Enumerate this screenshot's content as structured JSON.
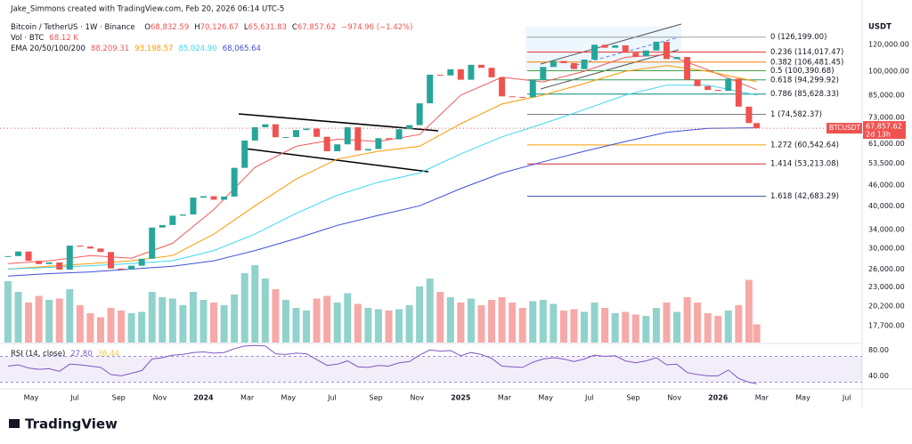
{
  "chart_data": {
    "type": "candlestick",
    "credit": "Jake_Simmons created with TradingView.com, Feb 20, 2026 06:14 UTC-5",
    "symbol": "Bitcoin / TetherUS · 1W · Binance",
    "ohlc": [
      [
        "O",
        "68,832.59"
      ],
      [
        "H",
        "70,126.67"
      ],
      [
        "L",
        "65,631.83"
      ],
      [
        "C",
        "67,857.62"
      ]
    ],
    "change": "−974.96 (−1.42%)",
    "volume_legend": {
      "name": "Vol · BTC",
      "value_label": "68.12 K"
    },
    "ema_legend": "EMA 20/50/100/200",
    "unit": "USDT",
    "ticker_label": "BTCUSDT",
    "last_price_label": "67,857.62",
    "countdown": "2d 13h",
    "logo": "TradingView",
    "log_scale": true,
    "up_color": "#26a69a",
    "down_color": "#ef5350",
    "xlim": [
      2023.209,
      2026.56
    ],
    "ylim": [
      15760,
      162500
    ],
    "yticks": [
      {
        "value": 120000,
        "label": "120,000.00"
      },
      {
        "value": 100000,
        "label": "100,000.00"
      },
      {
        "value": 85000,
        "label": "85,000.00"
      },
      {
        "value": 73000,
        "label": "73,000.00"
      },
      {
        "value": 61000,
        "label": "61,000.00"
      },
      {
        "value": 53500,
        "label": "53,500.00"
      },
      {
        "value": 46000,
        "label": "46,000.00"
      },
      {
        "value": 40000,
        "label": "40,000.00"
      },
      {
        "value": 34000,
        "label": "34,000.00"
      },
      {
        "value": 30000,
        "label": "30,000.00"
      },
      {
        "value": 26000,
        "label": "26,000.00"
      },
      {
        "value": 23000,
        "label": "23,000.00"
      },
      {
        "value": 20200,
        "label": "20,200.00"
      },
      {
        "value": 17700,
        "label": "17,700.00"
      }
    ],
    "xticks": [
      {
        "value": 2023.33,
        "label": "May"
      },
      {
        "value": 2023.5,
        "label": "Jul"
      },
      {
        "value": 2023.67,
        "label": "Sep"
      },
      {
        "value": 2023.83,
        "label": "Nov"
      },
      {
        "value": 2024.0,
        "label": "2024"
      },
      {
        "value": 2024.17,
        "label": "Mar"
      },
      {
        "value": 2024.33,
        "label": "May"
      },
      {
        "value": 2024.5,
        "label": "Jul"
      },
      {
        "value": 2024.67,
        "label": "Sep"
      },
      {
        "value": 2024.83,
        "label": "Nov"
      },
      {
        "value": 2025.0,
        "label": "2025"
      },
      {
        "value": 2025.17,
        "label": "Mar"
      },
      {
        "value": 2025.33,
        "label": "May"
      },
      {
        "value": 2025.5,
        "label": "Jul"
      },
      {
        "value": 2025.67,
        "label": "Sep"
      },
      {
        "value": 2025.83,
        "label": "Nov"
      },
      {
        "value": 2026.0,
        "label": "2026"
      },
      {
        "value": 2026.17,
        "label": "Mar"
      },
      {
        "value": 2026.33,
        "label": "May"
      },
      {
        "value": 2026.5,
        "label": "Jul"
      }
    ],
    "x": [
      2023.24,
      2023.28,
      2023.32,
      2023.36,
      2023.4,
      2023.44,
      2023.48,
      2023.52,
      2023.56,
      2023.6,
      2023.64,
      2023.68,
      2023.72,
      2023.76,
      2023.8,
      2023.84,
      2023.88,
      2023.92,
      2023.96,
      2024.0,
      2024.04,
      2024.08,
      2024.12,
      2024.16,
      2024.2,
      2024.24,
      2024.28,
      2024.32,
      2024.36,
      2024.4,
      2024.44,
      2024.48,
      2024.52,
      2024.56,
      2024.6,
      2024.64,
      2024.68,
      2024.72,
      2024.76,
      2024.8,
      2024.84,
      2024.88,
      2024.92,
      2024.96,
      2025.0,
      2025.04,
      2025.08,
      2025.12,
      2025.16,
      2025.2,
      2025.24,
      2025.28,
      2025.32,
      2025.36,
      2025.4,
      2025.44,
      2025.48,
      2025.52,
      2025.56,
      2025.6,
      2025.64,
      2025.68,
      2025.72,
      2025.76,
      2025.8,
      2025.84,
      2025.88,
      2025.92,
      2025.96,
      2026.0,
      2026.04,
      2026.08,
      2026.12,
      2026.15
    ],
    "close": [
      28400,
      29300,
      27500,
      26900,
      27200,
      25900,
      30500,
      30300,
      29900,
      29200,
      26100,
      25900,
      26600,
      27900,
      34500,
      35100,
      37400,
      37700,
      42300,
      42700,
      41700,
      42600,
      51800,
      62400,
      68300,
      69700,
      63800,
      63900,
      67000,
      67700,
      64000,
      58000,
      60800,
      68300,
      58300,
      58900,
      63400,
      62900,
      67400,
      69300,
      80400,
      97700,
      97200,
      101400,
      94400,
      104500,
      102400,
      96000,
      84300,
      84000,
      83800,
      94200,
      103000,
      107300,
      105700,
      101500,
      108300,
      119800,
      117400,
      119300,
      113400,
      110700,
      115200,
      122300,
      108700,
      110200,
      94500,
      90400,
      88100,
      87500,
      95100,
      78600,
      70300,
      67857.62
    ],
    "volume": [
      230,
      190,
      150,
      175,
      160,
      165,
      200,
      140,
      110,
      95,
      130,
      120,
      110,
      115,
      190,
      170,
      165,
      140,
      190,
      160,
      150,
      140,
      180,
      260,
      290,
      240,
      200,
      160,
      130,
      120,
      165,
      175,
      150,
      185,
      145,
      130,
      125,
      120,
      125,
      140,
      210,
      240,
      190,
      170,
      150,
      165,
      140,
      160,
      170,
      150,
      130,
      155,
      160,
      145,
      120,
      125,
      115,
      150,
      130,
      110,
      115,
      105,
      100,
      130,
      150,
      115,
      170,
      150,
      110,
      100,
      120,
      140,
      235,
      68.12
    ],
    "ema_x": [
      2023.24,
      2023.4,
      2023.56,
      2023.72,
      2023.88,
      2024.04,
      2024.2,
      2024.36,
      2024.52,
      2024.68,
      2024.84,
      2025.0,
      2025.16,
      2025.32,
      2025.48,
      2025.64,
      2025.8,
      2025.96,
      2026.15
    ],
    "ema": [
      {
        "color": "#f05a5a",
        "value_label": "88,209.31",
        "values": [
          27000,
          27500,
          28500,
          28000,
          31000,
          39000,
          52000,
          60000,
          63000,
          62000,
          65000,
          85000,
          96000,
          93000,
          100000,
          110000,
          112000,
          101000,
          88209.31
        ]
      },
      {
        "color": "#ff9800",
        "value_label": "93,198.57",
        "values": [
          26000,
          26500,
          27000,
          27500,
          28500,
          33000,
          40000,
          48000,
          55000,
          58000,
          60000,
          70000,
          80000,
          85000,
          92000,
          100000,
          104000,
          100000,
          93198.57
        ]
      },
      {
        "color": "#3fd6f0",
        "value_label": "85,024.90",
        "values": [
          26000,
          26300,
          26600,
          27000,
          27500,
          29500,
          33000,
          38000,
          43000,
          47000,
          50000,
          57000,
          64000,
          70000,
          77000,
          85000,
          91000,
          91000,
          85024.9
        ]
      },
      {
        "color": "#3f4fd8",
        "value_label": "68,065.64",
        "values": [
          24800,
          25200,
          25500,
          26000,
          26500,
          27500,
          29500,
          32000,
          35000,
          37500,
          40000,
          45000,
          50000,
          54000,
          58000,
          62000,
          66000,
          67800,
          68065.64
        ]
      }
    ],
    "fib": [
      {
        "label": "0 (126,199.00)",
        "price": 126199.0,
        "color": "#9aa0a8"
      },
      {
        "label": "0.236 (114,017.47)",
        "price": 114017.47,
        "color": "#e53935"
      },
      {
        "label": "0.382 (106,481.45)",
        "price": 106481.45,
        "color": "#f57c00"
      },
      {
        "label": "0.5 (100,390.68)",
        "price": 100390.68,
        "color": "#43a047"
      },
      {
        "label": "0.618 (94,299.92)",
        "price": 94299.92,
        "color": "#2e9e5b"
      },
      {
        "label": "0.786 (85,628.33)",
        "price": 85628.33,
        "color": "#00897b"
      },
      {
        "label": "1 (74,582.37)",
        "price": 74582.37,
        "color": "#787b86"
      },
      {
        "label": "1.272 (60,542.64)",
        "price": 60542.64,
        "color": "#f59f00"
      },
      {
        "label": "1.414 (53,213.08)",
        "price": 53213.08,
        "color": "#d32f2f"
      },
      {
        "label": "1.618 (42,683.29)",
        "price": 42683.29,
        "color": "#3949ab"
      }
    ],
    "rsi": {
      "title": "RSI (14, close)",
      "value_label": "27.80",
      "ma_label": "36.44",
      "color": "#7e57c2",
      "ylim": [
        24,
        90
      ],
      "yticks": [
        {
          "value": 80,
          "label": "80.00"
        },
        {
          "value": 40,
          "label": "40.00"
        }
      ],
      "band": [
        30,
        70
      ],
      "values": [
        55,
        57,
        52,
        50,
        51,
        47,
        58,
        57,
        55,
        53,
        42,
        40,
        44,
        48,
        66,
        68,
        72,
        73,
        76,
        77,
        75,
        76,
        82,
        86,
        87,
        86,
        74,
        73,
        75,
        74,
        65,
        56,
        58,
        63,
        54,
        53,
        56,
        55,
        60,
        62,
        72,
        80,
        78,
        79,
        71,
        76,
        73,
        67,
        55,
        54,
        53,
        61,
        66,
        68,
        66,
        62,
        66,
        72,
        70,
        71,
        63,
        60,
        63,
        68,
        57,
        58,
        45,
        42,
        40,
        40,
        49,
        36,
        30,
        27.8
      ]
    }
  }
}
